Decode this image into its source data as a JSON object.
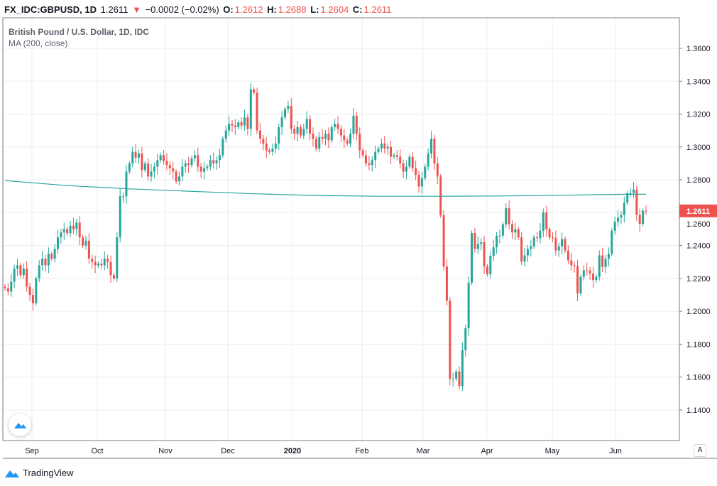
{
  "header": {
    "symbol": "FX_IDC:GBPUSD, 1D",
    "last": "1.2611",
    "change": "−0.0002 (−0.02%)",
    "o_label": "O:",
    "o": "1.2612",
    "h_label": "H:",
    "h": "1.2688",
    "l_label": "L:",
    "l": "1.2604",
    "c_label": "C:",
    "c": "1.2611"
  },
  "legend": {
    "title": "British Pound / U.S. Dollar, 1D, IDC",
    "indicator": "MA (200, close)"
  },
  "footer": {
    "brand": "TradingView",
    "auto_scale": "A"
  },
  "colors": {
    "up": "#26a69a",
    "down": "#ef5350",
    "ma": "#26a69a",
    "grid": "#e9eef3"
  },
  "chart_data": {
    "type": "candlestick",
    "title": "British Pound / U.S. Dollar, 1D, IDC",
    "ylim": [
      1.13,
      1.375
    ],
    "y_ticks": [
      "1.3600",
      "1.3400",
      "1.3200",
      "1.3000",
      "1.2800",
      "1.2600",
      "1.2400",
      "1.2200",
      "1.2000",
      "1.1800",
      "1.1600",
      "1.1400"
    ],
    "x_ticks": [
      "Sep",
      "Oct",
      "Nov",
      "Dec",
      "2020",
      "Feb",
      "Mar",
      "Apr",
      "May",
      "Jun"
    ],
    "last_price_label": "1.2611",
    "grid": true,
    "closes": [
      1.214,
      1.212,
      1.218,
      1.226,
      1.228,
      1.222,
      1.226,
      1.215,
      1.21,
      1.205,
      1.22,
      1.228,
      1.232,
      1.228,
      1.235,
      1.232,
      1.238,
      1.245,
      1.248,
      1.25,
      1.2475,
      1.252,
      1.25,
      1.254,
      1.245,
      1.24,
      1.243,
      1.232,
      1.23,
      1.228,
      1.229,
      1.228,
      1.232,
      1.23,
      1.222,
      1.22,
      1.245,
      1.27,
      1.27,
      1.285,
      1.29,
      1.297,
      1.2935,
      1.296,
      1.286,
      1.29,
      1.282,
      1.285,
      1.288,
      1.292,
      1.295,
      1.2915,
      1.289,
      1.287,
      1.285,
      1.279,
      1.282,
      1.288,
      1.29,
      1.289,
      1.293,
      1.295,
      1.288,
      1.285,
      1.287,
      1.288,
      1.292,
      1.29,
      1.292,
      1.295,
      1.305,
      1.31,
      1.314,
      1.313,
      1.312,
      1.315,
      1.313,
      1.318,
      1.311,
      1.335,
      1.333,
      1.31,
      1.305,
      1.302,
      1.298,
      1.297,
      1.299,
      1.302,
      1.312,
      1.318,
      1.323,
      1.325,
      1.311,
      1.308,
      1.312,
      1.307,
      1.311,
      1.317,
      1.308,
      1.305,
      1.299,
      1.306,
      1.305,
      1.308,
      1.304,
      1.312,
      1.314,
      1.311,
      1.307,
      1.304,
      1.302,
      1.308,
      1.319,
      1.308,
      1.298,
      1.295,
      1.29,
      1.289,
      1.292,
      1.297,
      1.299,
      1.302,
      1.299,
      1.3,
      1.294,
      1.295,
      1.294,
      1.29,
      1.285,
      1.288,
      1.294,
      1.287,
      1.283,
      1.276,
      1.281,
      1.288,
      1.296,
      1.305,
      1.29,
      1.282,
      1.2584,
      1.2273,
      1.2065,
      1.159,
      1.159,
      1.1634,
      1.1546,
      1.1763,
      1.1897,
      1.2174,
      1.2476,
      1.238,
      1.241,
      1.242,
      1.2273,
      1.2225,
      1.2338,
      1.239,
      1.246,
      1.246,
      1.253,
      1.2627,
      1.253,
      1.248,
      1.25,
      1.245,
      1.2303,
      1.234,
      1.238,
      1.2395,
      1.245,
      1.2445,
      1.249,
      1.2602,
      1.25,
      1.245,
      1.2445,
      1.237,
      1.2395,
      1.244,
      1.237,
      1.231,
      1.228,
      1.2275,
      1.2109,
      1.221,
      1.225,
      1.2248,
      1.223,
      1.219,
      1.221,
      1.234,
      1.227,
      1.232,
      1.235,
      1.249,
      1.2545,
      1.257,
      1.2587,
      1.266,
      1.2718,
      1.272,
      1.274,
      1.2587,
      1.2532,
      1.2612,
      1.2611
    ],
    "ma200": [
      [
        0,
        1.2795
      ],
      [
        20,
        1.2765
      ],
      [
        40,
        1.2745
      ],
      [
        60,
        1.273
      ],
      [
        80,
        1.2715
      ],
      [
        100,
        1.2705
      ],
      [
        120,
        1.27
      ],
      [
        140,
        1.27
      ],
      [
        160,
        1.2702
      ],
      [
        180,
        1.2706
      ],
      [
        190,
        1.271
      ],
      [
        200,
        1.2712
      ],
      [
        206,
        1.2712
      ]
    ]
  }
}
